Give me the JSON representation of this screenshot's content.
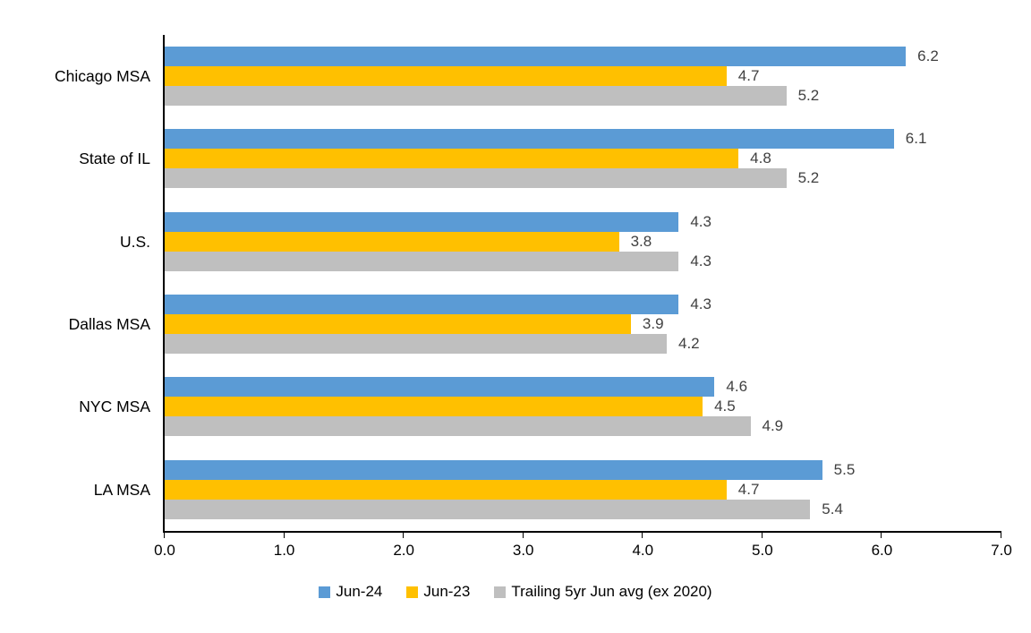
{
  "chart_data": {
    "type": "bar",
    "orientation": "horizontal",
    "title": "",
    "xlabel": "",
    "ylabel": "",
    "grid": false,
    "data_labels": true,
    "legend_position": "bottom",
    "categories": [
      "Chicago MSA",
      "State of IL",
      "U.S.",
      "Dallas MSA",
      "NYC MSA",
      "LA MSA"
    ],
    "series": [
      {
        "name": "Jun-24",
        "color": "#5B9BD5",
        "values": [
          6.2,
          6.1,
          4.3,
          4.3,
          4.6,
          5.5
        ]
      },
      {
        "name": "Jun-23",
        "color": "#FFC000",
        "values": [
          4.7,
          4.8,
          3.8,
          3.9,
          4.5,
          4.7
        ]
      },
      {
        "name": "Trailing 5yr Jun avg (ex 2020)",
        "color": "#BFBFBF",
        "values": [
          5.2,
          5.2,
          4.3,
          4.2,
          4.9,
          5.4
        ]
      }
    ],
    "xlim": [
      0,
      7
    ],
    "x_ticks": [
      "0.0",
      "1.0",
      "2.0",
      "3.0",
      "4.0",
      "5.0",
      "6.0",
      "7.0"
    ]
  },
  "colors": {
    "background": "#FFFFFF",
    "axis": "#000000",
    "data_label": "#404040",
    "text": "#000000"
  }
}
